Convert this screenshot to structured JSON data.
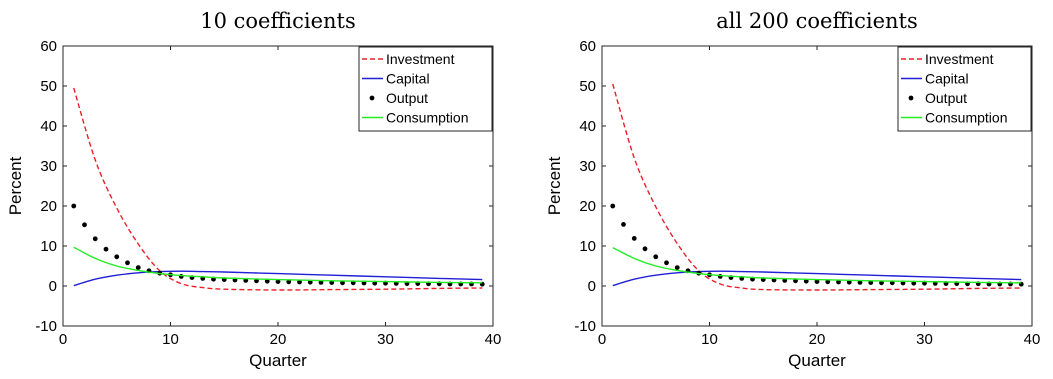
{
  "figure": {
    "colors": {
      "investment": "#e8202a",
      "capital": "#1f1fd6",
      "output": "#000000",
      "consumption": "#22ee22"
    }
  },
  "chart_data": [
    {
      "type": "line",
      "title": "10 coefficients",
      "xlabel": "Quarter",
      "ylabel": "Percent",
      "xlim": [
        0,
        40
      ],
      "ylim": [
        -10,
        60
      ],
      "xticks": [
        0,
        10,
        20,
        30,
        40
      ],
      "yticks": [
        -10,
        0,
        10,
        20,
        30,
        40,
        50,
        60
      ],
      "legend_position": "top-right",
      "grid": false,
      "series": [
        {
          "name": "Investment",
          "style": "dashed",
          "x": [
            1,
            3,
            5,
            7,
            9,
            11,
            13,
            15,
            20,
            25,
            30,
            35,
            39
          ],
          "y": [
            49.5,
            31.5,
            19.5,
            10.5,
            3.8,
            0.6,
            -0.4,
            -0.8,
            -1.0,
            -0.9,
            -0.8,
            -0.6,
            -0.5
          ]
        },
        {
          "name": "Capital",
          "style": "solid",
          "x": [
            1,
            3,
            5,
            7,
            9,
            11,
            13,
            15,
            20,
            25,
            30,
            35,
            39
          ],
          "y": [
            0.1,
            1.7,
            2.7,
            3.3,
            3.6,
            3.7,
            3.6,
            3.5,
            3.1,
            2.7,
            2.3,
            1.9,
            1.6
          ]
        },
        {
          "name": "Output",
          "style": "markers",
          "x": [
            1,
            2,
            3,
            4,
            5,
            6,
            7,
            8,
            9,
            10,
            11,
            12,
            13,
            14,
            15,
            16,
            17,
            18,
            19,
            20,
            21,
            22,
            23,
            24,
            25,
            26,
            27,
            28,
            29,
            30,
            31,
            32,
            33,
            34,
            35,
            36,
            37,
            38,
            39
          ],
          "y": [
            20,
            15.3,
            11.8,
            9.2,
            7.3,
            5.8,
            4.6,
            3.8,
            3.2,
            2.8,
            2.4,
            2.1,
            1.9,
            1.7,
            1.6,
            1.5,
            1.4,
            1.3,
            1.2,
            1.1,
            1.05,
            1.0,
            0.95,
            0.9,
            0.85,
            0.8,
            0.8,
            0.75,
            0.7,
            0.7,
            0.65,
            0.6,
            0.6,
            0.55,
            0.55,
            0.5,
            0.5,
            0.5,
            0.45
          ]
        },
        {
          "name": "Consumption",
          "style": "solid",
          "x": [
            1,
            3,
            5,
            7,
            9,
            11,
            13,
            15,
            20,
            25,
            30,
            35,
            39
          ],
          "y": [
            9.7,
            6.9,
            5.0,
            3.9,
            3.1,
            2.6,
            2.3,
            2.0,
            1.6,
            1.3,
            1.1,
            0.9,
            0.8
          ]
        }
      ]
    },
    {
      "type": "line",
      "title": "all 200 coefficients",
      "xlabel": "Quarter",
      "ylabel": "Percent",
      "xlim": [
        0,
        40
      ],
      "ylim": [
        -10,
        60
      ],
      "xticks": [
        0,
        10,
        20,
        30,
        40
      ],
      "yticks": [
        -10,
        0,
        10,
        20,
        30,
        40,
        50,
        60
      ],
      "legend_position": "top-right",
      "grid": false,
      "series": [
        {
          "name": "Investment",
          "style": "dashed",
          "x": [
            1,
            3,
            5,
            7,
            9,
            11,
            13,
            15,
            20,
            25,
            30,
            35,
            39
          ],
          "y": [
            50.5,
            32.0,
            19.8,
            10.6,
            3.8,
            0.5,
            -0.5,
            -0.9,
            -1.0,
            -0.9,
            -0.8,
            -0.6,
            -0.5
          ]
        },
        {
          "name": "Capital",
          "style": "solid",
          "x": [
            1,
            3,
            5,
            7,
            9,
            11,
            13,
            15,
            20,
            25,
            30,
            35,
            39
          ],
          "y": [
            0.1,
            1.7,
            2.7,
            3.3,
            3.6,
            3.7,
            3.6,
            3.5,
            3.1,
            2.7,
            2.3,
            1.9,
            1.6
          ]
        },
        {
          "name": "Output",
          "style": "markers",
          "x": [
            1,
            2,
            3,
            4,
            5,
            6,
            7,
            8,
            9,
            10,
            11,
            12,
            13,
            14,
            15,
            16,
            17,
            18,
            19,
            20,
            21,
            22,
            23,
            24,
            25,
            26,
            27,
            28,
            29,
            30,
            31,
            32,
            33,
            34,
            35,
            36,
            37,
            38,
            39
          ],
          "y": [
            20,
            15.4,
            11.9,
            9.3,
            7.3,
            5.8,
            4.6,
            3.8,
            3.2,
            2.8,
            2.4,
            2.1,
            1.9,
            1.7,
            1.6,
            1.5,
            1.4,
            1.3,
            1.2,
            1.1,
            1.05,
            1.0,
            0.95,
            0.9,
            0.85,
            0.8,
            0.8,
            0.75,
            0.7,
            0.7,
            0.65,
            0.6,
            0.6,
            0.55,
            0.55,
            0.5,
            0.5,
            0.5,
            0.45
          ]
        },
        {
          "name": "Consumption",
          "style": "solid",
          "x": [
            1,
            3,
            5,
            7,
            9,
            11,
            13,
            15,
            20,
            25,
            30,
            35,
            39
          ],
          "y": [
            9.6,
            6.9,
            5.0,
            3.9,
            3.1,
            2.6,
            2.3,
            2.0,
            1.6,
            1.3,
            1.1,
            0.9,
            0.8
          ]
        }
      ]
    }
  ]
}
